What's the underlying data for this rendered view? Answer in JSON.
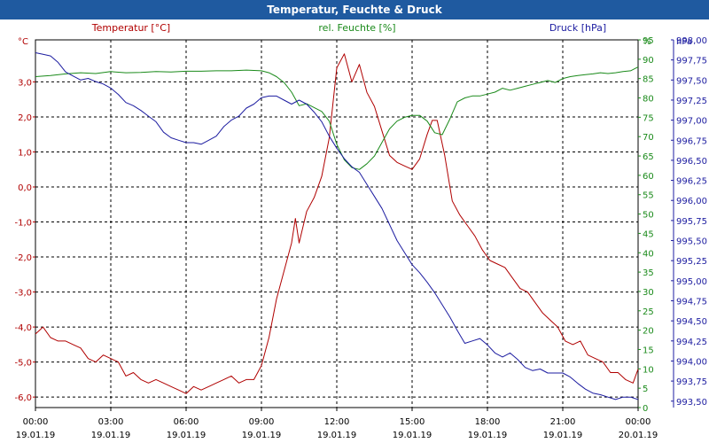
{
  "window": {
    "title": "Temperatur, Feuchte & Druck"
  },
  "chart_data": {
    "type": "line",
    "title": "Temperatur, Feuchte & Druck",
    "colors": {
      "temperature": "#b00000",
      "humidity": "#1a8a1a",
      "pressure": "#1c1ca0"
    },
    "axes": {
      "temperature": {
        "unit": "°C",
        "label": "Temperatur [°C]",
        "ylim": [
          -6.3,
          4.2
        ],
        "ticks": [
          "3,0",
          "2,0",
          "1,0",
          "0,0",
          "-1,0",
          "-2,0",
          "-3,0",
          "-4,0",
          "-5,0",
          "-6,0"
        ],
        "tick_values": [
          3,
          2,
          1,
          0,
          -1,
          -2,
          -3,
          -4,
          -5,
          -6
        ]
      },
      "humidity": {
        "unit": "%",
        "label": "rel. Feuchte [%]",
        "ylim": [
          0,
          95
        ],
        "ticks": [
          "95",
          "90",
          "85",
          "80",
          "75",
          "70",
          "65",
          "60",
          "55",
          "50",
          "45",
          "40",
          "35",
          "30",
          "25",
          "20",
          "15",
          "10",
          "5",
          "0"
        ],
        "tick_values": [
          95,
          90,
          85,
          80,
          75,
          70,
          65,
          60,
          55,
          50,
          45,
          40,
          35,
          30,
          25,
          20,
          15,
          10,
          5,
          0
        ]
      },
      "pressure": {
        "unit": "hPa",
        "label": "Druck [hPa]",
        "ylim": [
          993.42,
          998.0
        ],
        "ticks": [
          "998,00",
          "997,75",
          "997,50",
          "997,25",
          "997,00",
          "996,75",
          "996,50",
          "996,25",
          "996,00",
          "995,75",
          "995,50",
          "995,25",
          "995,00",
          "994,75",
          "994,50",
          "994,25",
          "994,00",
          "993,75",
          "993,50"
        ],
        "tick_values": [
          998.0,
          997.75,
          997.5,
          997.25,
          997.0,
          996.75,
          996.5,
          996.25,
          996.0,
          995.75,
          995.5,
          995.25,
          995.0,
          994.75,
          994.5,
          994.25,
          994.0,
          993.75,
          993.5
        ]
      }
    },
    "x_ticks": [
      {
        "time": "00:00",
        "date": "19.01.19"
      },
      {
        "time": "03:00",
        "date": "19.01.19"
      },
      {
        "time": "06:00",
        "date": "19.01.19"
      },
      {
        "time": "09:00",
        "date": "19.01.19"
      },
      {
        "time": "12:00",
        "date": "19.01.19"
      },
      {
        "time": "15:00",
        "date": "19.01.19"
      },
      {
        "time": "18:00",
        "date": "19.01.19"
      },
      {
        "time": "21:00",
        "date": "19.01.19"
      },
      {
        "time": "00:00",
        "date": "20.01.19"
      }
    ],
    "xlim": [
      0,
      24
    ],
    "grid": true,
    "series": [
      {
        "name": "Temperatur [°C]",
        "axis": "temperature",
        "x": [
          0,
          0.3,
          0.6,
          0.9,
          1.2,
          1.5,
          1.8,
          2.1,
          2.4,
          2.7,
          3.0,
          3.3,
          3.6,
          3.9,
          4.2,
          4.5,
          4.8,
          5.1,
          5.4,
          5.7,
          6.0,
          6.3,
          6.6,
          6.9,
          7.2,
          7.5,
          7.8,
          8.1,
          8.4,
          8.7,
          9.0,
          9.3,
          9.6,
          9.9,
          10.2,
          10.35,
          10.5,
          10.8,
          11.1,
          11.4,
          11.7,
          12.0,
          12.3,
          12.6,
          12.9,
          13.2,
          13.5,
          13.8,
          14.1,
          14.4,
          14.7,
          15.0,
          15.3,
          15.6,
          15.8,
          16.0,
          16.3,
          16.6,
          16.9,
          17.2,
          17.5,
          17.8,
          18.1,
          18.4,
          18.7,
          19.0,
          19.3,
          19.6,
          19.9,
          20.2,
          20.5,
          20.8,
          21.1,
          21.4,
          21.7,
          22.0,
          22.3,
          22.6,
          22.9,
          23.2,
          23.5,
          23.8,
          24.0
        ],
        "values": [
          -4.2,
          -4.0,
          -4.3,
          -4.4,
          -4.4,
          -4.5,
          -4.6,
          -4.9,
          -5.0,
          -4.8,
          -4.9,
          -5.0,
          -5.4,
          -5.3,
          -5.5,
          -5.6,
          -5.5,
          -5.6,
          -5.7,
          -5.8,
          -5.9,
          -5.7,
          -5.8,
          -5.7,
          -5.6,
          -5.5,
          -5.4,
          -5.6,
          -5.5,
          -5.5,
          -5.1,
          -4.3,
          -3.2,
          -2.4,
          -1.6,
          -0.9,
          -1.6,
          -0.7,
          -0.3,
          0.3,
          1.4,
          3.4,
          3.8,
          3.0,
          3.5,
          2.7,
          2.3,
          1.6,
          0.9,
          0.7,
          0.6,
          0.5,
          0.8,
          1.5,
          1.9,
          1.9,
          0.9,
          -0.4,
          -0.8,
          -1.1,
          -1.4,
          -1.8,
          -2.1,
          -2.2,
          -2.3,
          -2.6,
          -2.9,
          -3.0,
          -3.3,
          -3.6,
          -3.8,
          -4.0,
          -4.4,
          -4.5,
          -4.4,
          -4.8,
          -4.9,
          -5.0,
          -5.3,
          -5.3,
          -5.5,
          -5.6,
          -5.2
        ]
      },
      {
        "name": "rel. Feuchte [%]",
        "axis": "humidity",
        "x": [
          0,
          0.6,
          1.2,
          1.8,
          2.4,
          3.0,
          3.6,
          4.2,
          4.8,
          5.4,
          6.0,
          6.6,
          7.2,
          7.8,
          8.4,
          9.0,
          9.3,
          9.6,
          9.9,
          10.2,
          10.5,
          10.8,
          11.1,
          11.4,
          11.7,
          12.0,
          12.3,
          12.6,
          12.9,
          13.2,
          13.5,
          13.8,
          14.1,
          14.4,
          14.7,
          15.0,
          15.3,
          15.6,
          15.9,
          16.2,
          16.5,
          16.8,
          17.1,
          17.4,
          17.7,
          18.0,
          18.3,
          18.6,
          18.9,
          19.2,
          19.5,
          19.8,
          20.1,
          20.4,
          20.7,
          21.0,
          21.3,
          21.6,
          21.9,
          22.2,
          22.5,
          22.8,
          23.1,
          23.4,
          23.7,
          24.0
        ],
        "values": [
          85.5,
          85.8,
          86.2,
          86.5,
          86.3,
          86.8,
          86.5,
          86.6,
          86.8,
          86.7,
          86.9,
          86.9,
          87.0,
          87.0,
          87.2,
          87.0,
          86.5,
          85.5,
          84.0,
          81.5,
          78.0,
          78.5,
          77.5,
          76.5,
          74.0,
          68.0,
          64.0,
          62.0,
          61.5,
          63.0,
          65.0,
          68.5,
          72.0,
          74.0,
          75.0,
          75.5,
          75.5,
          74.0,
          71.0,
          70.5,
          74.5,
          79.0,
          80.0,
          80.5,
          80.5,
          81.0,
          81.5,
          82.5,
          82.0,
          82.5,
          83.0,
          83.5,
          84.0,
          84.5,
          84.0,
          85.0,
          85.5,
          85.8,
          86.0,
          86.2,
          86.5,
          86.3,
          86.5,
          86.8,
          87.0,
          88.0
        ]
      },
      {
        "name": "Druck [hPa]",
        "axis": "pressure",
        "x": [
          0,
          0.3,
          0.6,
          0.9,
          1.2,
          1.5,
          1.8,
          2.1,
          2.4,
          2.7,
          3.0,
          3.3,
          3.6,
          3.9,
          4.2,
          4.5,
          4.8,
          5.1,
          5.4,
          5.7,
          6.0,
          6.3,
          6.6,
          6.9,
          7.2,
          7.5,
          7.8,
          8.1,
          8.4,
          8.7,
          9.0,
          9.3,
          9.6,
          9.9,
          10.2,
          10.5,
          10.8,
          11.1,
          11.4,
          11.7,
          12.0,
          12.3,
          12.6,
          12.9,
          13.2,
          13.5,
          13.8,
          14.1,
          14.4,
          14.7,
          15.0,
          15.3,
          15.6,
          15.9,
          16.2,
          16.5,
          16.8,
          17.1,
          17.4,
          17.7,
          18.0,
          18.3,
          18.6,
          18.9,
          19.2,
          19.5,
          19.8,
          20.1,
          20.4,
          20.7,
          21.0,
          21.3,
          21.6,
          21.9,
          22.2,
          22.5,
          22.8,
          23.1,
          23.4,
          23.7,
          24.0
        ],
        "values": [
          997.84,
          997.82,
          997.8,
          997.72,
          997.6,
          997.55,
          997.5,
          997.52,
          997.48,
          997.45,
          997.4,
          997.32,
          997.22,
          997.18,
          997.12,
          997.05,
          996.98,
          996.85,
          996.78,
          996.75,
          996.72,
          996.72,
          996.7,
          996.75,
          996.8,
          996.92,
          997.0,
          997.05,
          997.15,
          997.2,
          997.28,
          997.3,
          997.3,
          997.25,
          997.2,
          997.25,
          997.2,
          997.1,
          996.98,
          996.8,
          996.65,
          996.52,
          996.42,
          996.35,
          996.2,
          996.05,
          995.9,
          995.7,
          995.5,
          995.35,
          995.2,
          995.1,
          994.98,
          994.85,
          994.7,
          994.55,
          994.38,
          994.22,
          994.25,
          994.28,
          994.2,
          994.1,
          994.05,
          994.1,
          994.02,
          993.92,
          993.88,
          993.9,
          993.85,
          993.85,
          993.85,
          993.8,
          993.72,
          993.65,
          993.6,
          993.58,
          993.55,
          993.52,
          993.55,
          993.55,
          993.52
        ]
      }
    ]
  }
}
